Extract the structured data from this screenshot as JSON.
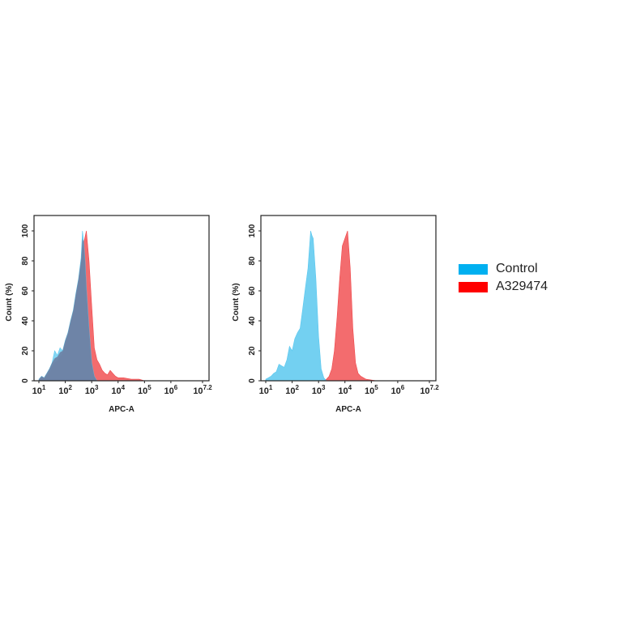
{
  "chart_data": [
    {
      "type": "area",
      "title": "",
      "xlabel": "APC-A",
      "ylabel": "Count  (%)",
      "xscale": "log",
      "xlim": [
        10,
        15848932
      ],
      "ylim": [
        0,
        110
      ],
      "x_tick_labels": [
        "10^1",
        "10^2",
        "10^3",
        "10^4",
        "10^5",
        "10^6",
        "10^7.2"
      ],
      "x_tick_exponents": [
        1,
        2,
        3,
        4,
        5,
        6,
        7.2
      ],
      "y_ticks": [
        0,
        20,
        40,
        60,
        80,
        100
      ],
      "grid": false,
      "legend_position": "right",
      "series": [
        {
          "name": "Control",
          "color": "#5bc8ef",
          "log10_x": [
            1.0,
            1.1,
            1.2,
            1.3,
            1.4,
            1.5,
            1.6,
            1.7,
            1.8,
            1.9,
            2.0,
            2.1,
            2.2,
            2.3,
            2.4,
            2.5,
            2.6,
            2.65,
            2.7,
            2.75,
            2.8,
            2.9,
            3.0,
            3.1,
            3.2
          ],
          "values": [
            1,
            3,
            2,
            5,
            8,
            12,
            20,
            17,
            22,
            20,
            27,
            32,
            40,
            47,
            58,
            68,
            82,
            100,
            92,
            80,
            62,
            35,
            12,
            3,
            0
          ]
        },
        {
          "name": "A329474",
          "color": "#f0474a",
          "log10_x": [
            1.0,
            1.1,
            1.2,
            1.3,
            1.4,
            1.5,
            1.6,
            1.7,
            1.8,
            1.9,
            2.0,
            2.1,
            2.2,
            2.3,
            2.4,
            2.5,
            2.6,
            2.7,
            2.8,
            2.9,
            3.0,
            3.1,
            3.2,
            3.3,
            3.4,
            3.5,
            3.6,
            3.7,
            3.8,
            3.9,
            4.0,
            4.2,
            4.5,
            4.8,
            5.0,
            7.1
          ],
          "values": [
            0,
            2,
            1,
            3,
            5,
            9,
            12,
            13,
            16,
            18,
            24,
            29,
            37,
            45,
            55,
            65,
            78,
            92,
            100,
            80,
            50,
            22,
            14,
            11,
            7,
            5,
            4,
            7,
            5,
            3,
            2,
            2,
            1,
            1,
            0,
            0
          ]
        }
      ]
    },
    {
      "type": "area",
      "title": "",
      "xlabel": "APC-A",
      "ylabel": "Count  (%)",
      "xscale": "log",
      "xlim": [
        10,
        15848932
      ],
      "ylim": [
        0,
        110
      ],
      "x_tick_labels": [
        "10^1",
        "10^2",
        "10^3",
        "10^4",
        "10^5",
        "10^6",
        "10^7.2"
      ],
      "x_tick_exponents": [
        1,
        2,
        3,
        4,
        5,
        6,
        7.2
      ],
      "y_ticks": [
        0,
        20,
        40,
        60,
        80,
        100
      ],
      "grid": false,
      "legend_position": "right",
      "series": [
        {
          "name": "Control",
          "color": "#5bc8ef",
          "log10_x": [
            1.0,
            1.1,
            1.2,
            1.3,
            1.4,
            1.5,
            1.6,
            1.7,
            1.8,
            1.9,
            2.0,
            2.1,
            2.2,
            2.3,
            2.4,
            2.5,
            2.6,
            2.7,
            2.75,
            2.8,
            2.9,
            3.0,
            3.1,
            3.2,
            3.3
          ],
          "values": [
            1,
            2,
            3,
            5,
            6,
            11,
            10,
            9,
            14,
            23,
            20,
            28,
            32,
            35,
            48,
            62,
            75,
            100,
            97,
            95,
            68,
            30,
            8,
            2,
            0
          ]
        },
        {
          "name": "A329474",
          "color": "#f0474a",
          "log10_x": [
            3.2,
            3.3,
            3.4,
            3.5,
            3.6,
            3.7,
            3.8,
            3.9,
            4.0,
            4.1,
            4.2,
            4.3,
            4.4,
            4.5,
            4.6,
            4.8,
            5.0,
            5.2,
            6.0
          ],
          "values": [
            0,
            1,
            3,
            8,
            20,
            42,
            68,
            90,
            95,
            100,
            75,
            35,
            12,
            5,
            3,
            1,
            0.5,
            0,
            0
          ]
        }
      ]
    }
  ],
  "legend": {
    "items": [
      {
        "label": "Control",
        "color": "#00b0f0"
      },
      {
        "label": "A329474",
        "color": "#ff0000"
      }
    ]
  },
  "plots": [
    {
      "xlabel": "APC-A",
      "ylabel": "Count  (%)"
    },
    {
      "xlabel": "APC-A",
      "ylabel": "Count  (%)"
    }
  ]
}
